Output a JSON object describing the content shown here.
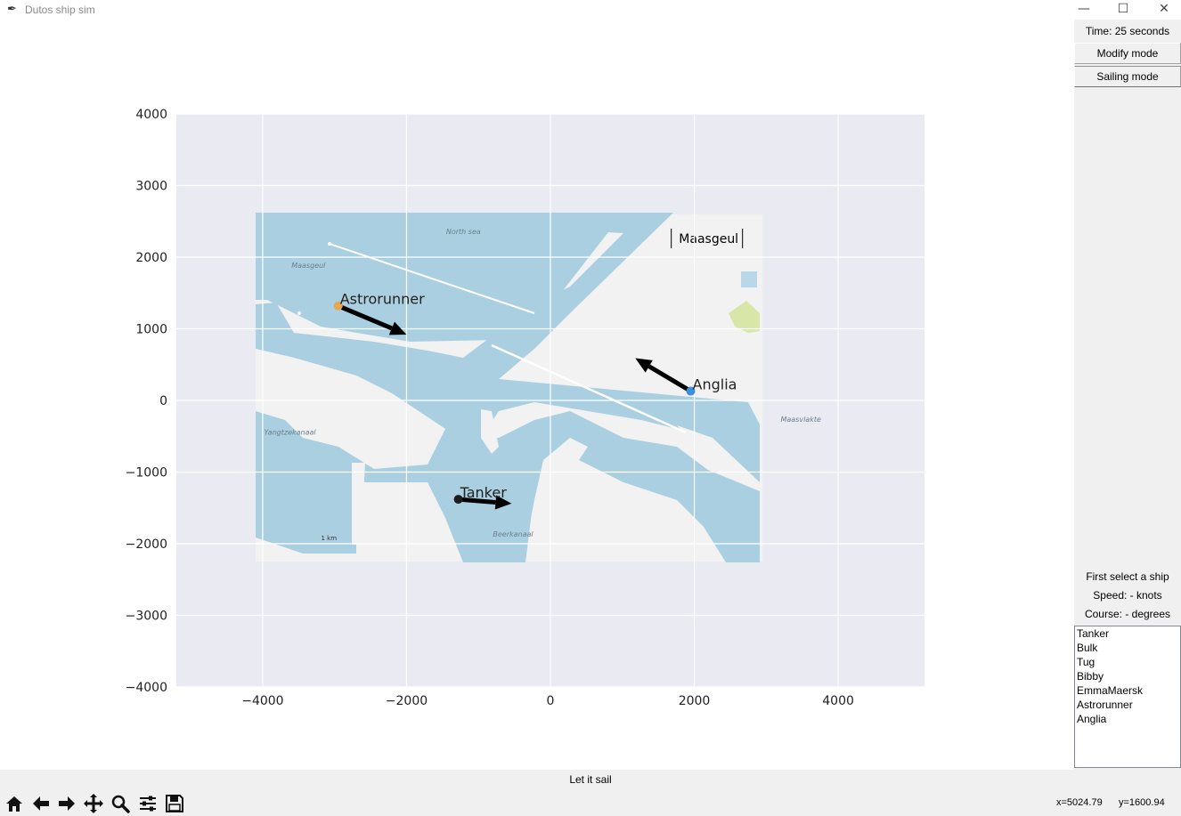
{
  "window": {
    "title": "Dutos ship sim",
    "controls": [
      "minimize",
      "maximize",
      "close"
    ]
  },
  "sidebar": {
    "time_label": "Time: 25 seconds",
    "modify_label": "Modify mode",
    "sailing_label": "Sailing mode",
    "select_hint": "First select a ship",
    "speed_label": "Speed: - knots",
    "course_label": "Course: - degrees",
    "ships": [
      "Tanker",
      "Bulk",
      "Tug",
      "Bibby",
      "EmmaMaersk",
      "Astrorunner",
      "Anglia"
    ]
  },
  "bottom": {
    "status": "Let it sail",
    "coord_x": "x=5024.79",
    "coord_y": "y=1600.94",
    "toolbar": [
      "home-icon",
      "back-arrow-icon",
      "forward-arrow-icon",
      "pan-icon",
      "zoom-icon",
      "configure-subplots-icon",
      "save-icon"
    ]
  },
  "chart_data": {
    "type": "scatter",
    "title": "",
    "xlabel": "",
    "ylabel": "",
    "xlim": [
      -5200,
      5200
    ],
    "ylim": [
      -4000,
      4000
    ],
    "x_ticks": [
      -4000,
      -2000,
      0,
      2000,
      4000
    ],
    "y_ticks": [
      4000,
      3000,
      2000,
      1000,
      0,
      -1000,
      -2000,
      -3000,
      -4000
    ],
    "x_tick_labels": [
      "−4000",
      "−2000",
      "0",
      "2000",
      "4000"
    ],
    "y_tick_labels": [
      "4000",
      "3000",
      "2000",
      "1000",
      "0",
      "−1000",
      "−2000",
      "−3000",
      "−4000"
    ],
    "grid": true,
    "background_color": "#eaeaf2",
    "map_extent": {
      "x": [
        -4100,
        2950
      ],
      "y": [
        -2250,
        2600
      ]
    },
    "map_water_color": "#aacfe0",
    "map_land_color": "#f2f2f2",
    "map_labels": [
      {
        "text": "North sea",
        "x": -1450,
        "y": 2320
      },
      {
        "text": "Maasgeul",
        "x": -3600,
        "y": 1850
      },
      {
        "text": "Yangtzekanaal",
        "x": -3980,
        "y": -480
      },
      {
        "text": "Beerkanaal",
        "x": -800,
        "y": -1900
      },
      {
        "text": "Maasvlakte",
        "x": 3200,
        "y": -300
      }
    ],
    "map_title": "Maasgeul",
    "map_scale_label": "1 km",
    "ships": [
      {
        "name": "Astrorunner",
        "x": -2950,
        "y": 1320,
        "heading_dx": 950,
        "heading_dy": -400,
        "color": "#e8a64e"
      },
      {
        "name": "Anglia",
        "x": 1950,
        "y": 130,
        "heading_dx": -770,
        "heading_dy": 460,
        "color": "#3f8fe0"
      },
      {
        "name": "Tanker",
        "x": -1280,
        "y": -1380,
        "heading_dx": 740,
        "heading_dy": -60,
        "color": "#1d1d1d"
      }
    ]
  }
}
